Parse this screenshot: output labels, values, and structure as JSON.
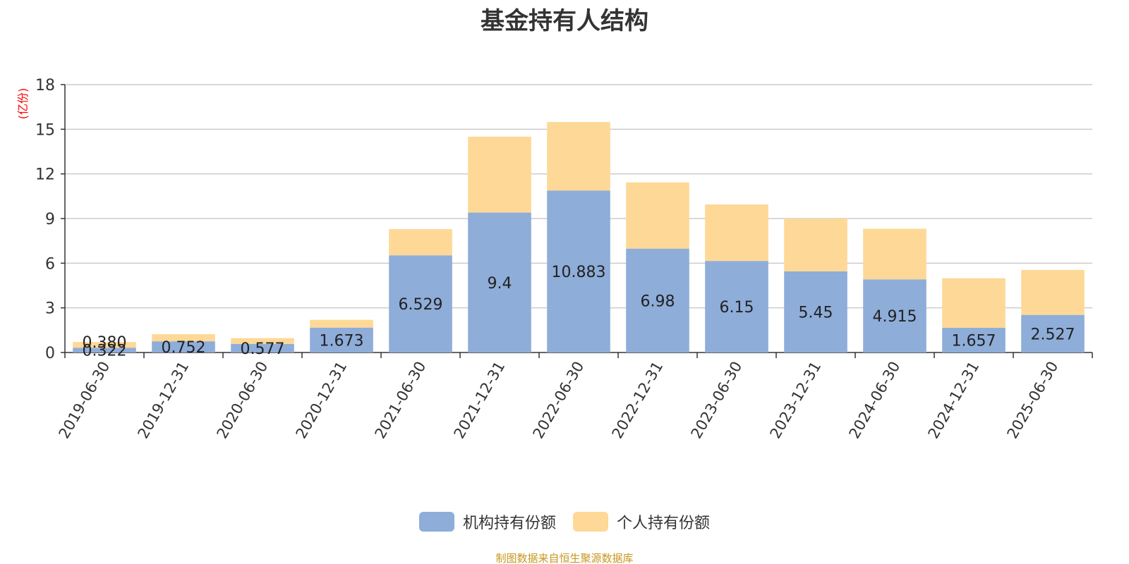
{
  "colors": {
    "institutional": "#8eadd9",
    "individual": "#fed896",
    "unit": "#ff0000",
    "source": "#c8961e",
    "axis": "#333333",
    "grid": "#cccccc"
  },
  "legend": {
    "institutional": "机构持有份额",
    "individual": "个人持有份额"
  },
  "source_text": "制图数据来自恒生聚源数据库",
  "chart_data": {
    "type": "bar",
    "stacked": true,
    "title": "基金持有人结构",
    "unit_label": "(亿份)",
    "ylim": [
      0,
      18
    ],
    "yticks": [
      0,
      3,
      6,
      9,
      12,
      15,
      18
    ],
    "grid": true,
    "legend_position": "bottom",
    "categories": [
      "2019-06-30",
      "2019-12-31",
      "2020-06-30",
      "2020-12-31",
      "2021-06-30",
      "2021-12-31",
      "2022-06-30",
      "2022-12-31",
      "2023-06-30",
      "2023-12-31",
      "2024-06-30",
      "2024-12-31",
      "2025-06-30"
    ],
    "series": [
      {
        "name": "机构持有份额",
        "values": [
          0.322,
          0.752,
          0.577,
          1.673,
          6.529,
          9.4,
          10.883,
          6.98,
          6.15,
          5.45,
          4.915,
          1.657,
          2.527
        ],
        "labels": [
          "0.322",
          "0.752",
          "0.577",
          "1.673",
          "6.529",
          "9.4",
          "10.883",
          "6.98",
          "6.15",
          "5.45",
          "4.915",
          "1.657",
          "2.527"
        ]
      },
      {
        "name": "个人持有份额",
        "values": [
          0.38,
          0.48,
          0.39,
          0.52,
          1.76,
          5.1,
          4.6,
          4.45,
          3.8,
          3.55,
          3.4,
          3.33,
          3.02
        ],
        "labels": [
          "0.380",
          "",
          "",
          "",
          "",
          "",
          "",
          "",
          "",
          "",
          "",
          "",
          ""
        ]
      }
    ]
  }
}
